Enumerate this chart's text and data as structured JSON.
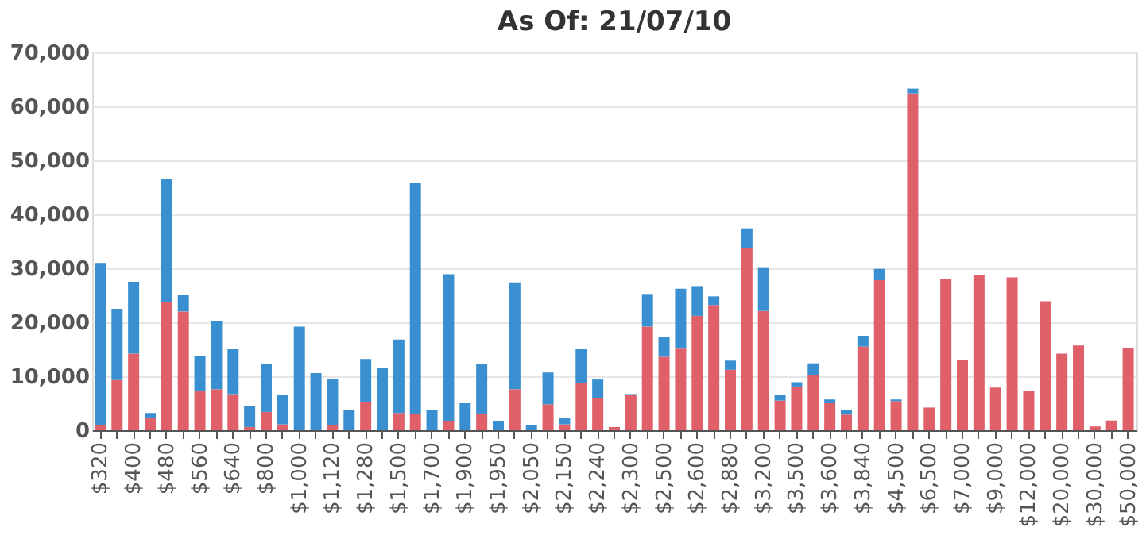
{
  "chart_data": {
    "type": "bar",
    "title": "As Of: 21/07/10",
    "stacked": true,
    "grid": "y",
    "legend": false,
    "categories": [
      "$320",
      null,
      "$400",
      null,
      "$480",
      null,
      "$560",
      null,
      "$640",
      null,
      "$800",
      null,
      "$1,000",
      null,
      "$1,120",
      null,
      "$1,280",
      null,
      "$1,500",
      null,
      "$1,700",
      null,
      "$1,900",
      null,
      "$1,950",
      null,
      "$2,050",
      null,
      "$2,150",
      null,
      "$2,240",
      null,
      "$2,300",
      null,
      "$2,500",
      null,
      "$2,600",
      null,
      "$2,880",
      null,
      "$3,200",
      null,
      "$3,500",
      null,
      "$3,600",
      null,
      "$3,840",
      null,
      "$4,500",
      null,
      "$6,500",
      null,
      "$7,000",
      null,
      "$9,000",
      null,
      "$12,000",
      null,
      "$20,000",
      null,
      "$30,000",
      null,
      "$50,000"
    ],
    "ylim": [
      0,
      70000
    ],
    "yticks": [
      0,
      {
        "value": 10000,
        "label": "10,000"
      },
      {
        "value": 20000,
        "label": "20,000"
      },
      {
        "value": 30000,
        "label": "30,000"
      },
      {
        "value": 40000,
        "label": "40,000"
      },
      {
        "value": 50000,
        "label": "50,000"
      },
      {
        "value": 60000,
        "label": "60,000"
      },
      {
        "value": 70000,
        "label": "70,000"
      }
    ],
    "series": [
      {
        "color": "#e0606a",
        "values": [
          1000,
          9300,
          14200,
          2200,
          23800,
          22000,
          7200,
          7600,
          6700,
          600,
          3400,
          1100,
          0,
          0,
          1000,
          0,
          5300,
          0,
          3200,
          3100,
          0,
          1700,
          0,
          3100,
          0,
          7600,
          0,
          4800,
          1100,
          8700,
          5900,
          600,
          6500,
          19200,
          13600,
          15100,
          21200,
          23200,
          11200,
          33700,
          22100,
          5500,
          8100,
          10200,
          5000,
          2900,
          15500,
          27800,
          5400,
          62400,
          4200,
          28000,
          13100,
          28700,
          7900,
          28300,
          7300,
          23900,
          14200,
          15700,
          700,
          1800,
          15300
        ]
      },
      {
        "color": "#3a8fd0",
        "values": [
          30000,
          13200,
          13300,
          1000,
          22700,
          3000,
          6500,
          12600,
          8300,
          3900,
          8900,
          5400,
          19200,
          10600,
          8500,
          3800,
          7900,
          11600,
          13600,
          42700,
          3800,
          27200,
          5000,
          9100,
          1700,
          19800,
          1000,
          5900,
          1100,
          6300,
          3500,
          0,
          200,
          5900,
          3700,
          11100,
          5500,
          1600,
          1700,
          3700,
          8100,
          1100,
          800,
          2200,
          700,
          900,
          2000,
          2100,
          300,
          900,
          0,
          0,
          0,
          0,
          0,
          0,
          0,
          0,
          0,
          0,
          0,
          0,
          0
        ]
      }
    ]
  }
}
